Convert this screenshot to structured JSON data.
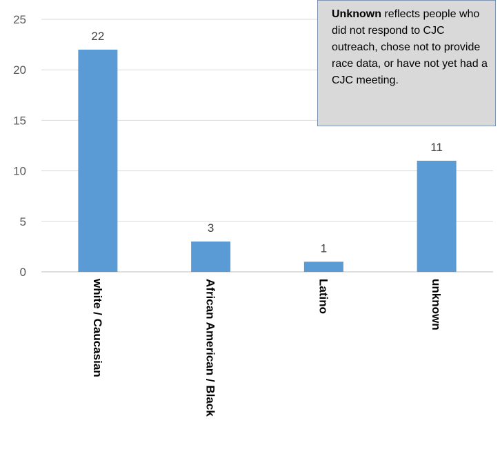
{
  "chart_data": {
    "type": "bar",
    "categories": [
      "white / Caucasian",
      "African American / Black",
      "Latino",
      "unknown"
    ],
    "values": [
      22,
      3,
      1,
      11
    ],
    "title": "",
    "xlabel": "",
    "ylabel": "",
    "ylim": [
      0,
      25
    ],
    "yticks": [
      0,
      5,
      10,
      15,
      20,
      25
    ],
    "grid": true,
    "bar_color": "#5b9bd5",
    "annotation": {
      "bold": "Unknown",
      "text": " reflects people who did not respond to CJC outreach, chose not to provide race data, or have not yet had a CJC meeting."
    }
  }
}
